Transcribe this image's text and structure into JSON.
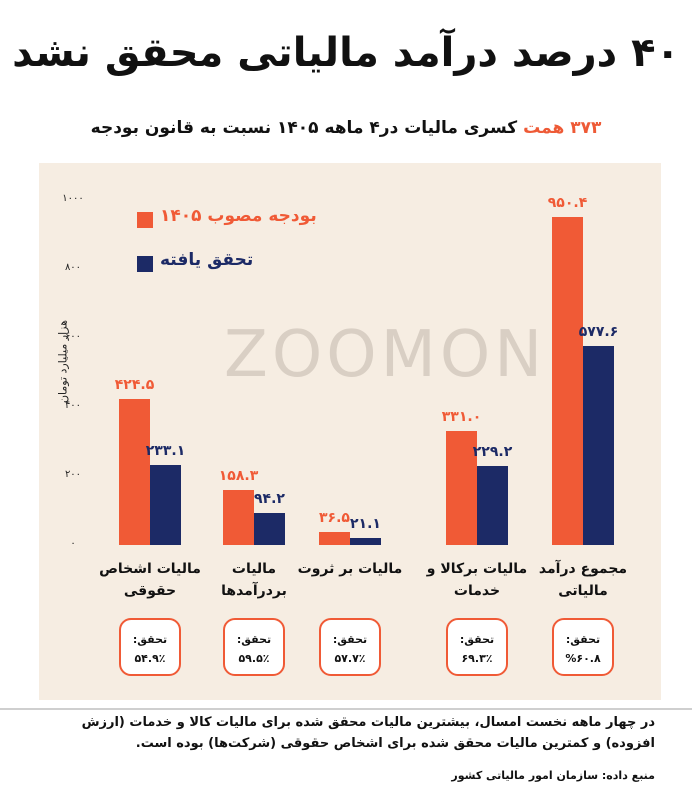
{
  "header": {
    "title": "۴۰ درصد درآمد مالیاتی محقق نشد",
    "subtitle_highlight": "۳۷۳ همت",
    "subtitle_rest": " کسری مالیات در۴ ماهه ۱۴۰۵ نسبت به قانون بودجه"
  },
  "watermark": "ZOOMON",
  "chart_data": {
    "type": "bar",
    "ylabel": "هزار میلیارد تومان",
    "ylim": [
      0,
      1000
    ],
    "yticks": [
      0,
      200,
      400,
      600,
      800,
      1000
    ],
    "ytick_labels": [
      "۰",
      "۲۰۰",
      "۴۰۰",
      "۶۰۰",
      "۸۰۰",
      "۱۰۰۰"
    ],
    "categories": [
      "مالیات اشخاص حقوقی",
      "مالیات بردرآمدها",
      "مالیات بر ثروت",
      "مالیات برکالا و خدمات",
      "مجموع درآمد مالیاتی"
    ],
    "series": [
      {
        "name": "بودجه مصوب ۱۴۰۵",
        "color": "#f05a36",
        "values": [
          424.5,
          158.3,
          36.5,
          331.0,
          950.4
        ],
        "labels": [
          "۴۲۴.۵",
          "۱۵۸.۳",
          "۳۶.۵",
          "۳۳۱.۰",
          "۹۵۰.۴"
        ]
      },
      {
        "name": "تحقق یافته",
        "color": "#1c2a66",
        "values": [
          233.1,
          94.2,
          21.1,
          229.2,
          577.6
        ],
        "labels": [
          "۲۳۳.۱",
          "۹۴.۲",
          "۲۱.۱",
          "۲۲۹.۲",
          "۵۷۷.۶"
        ]
      }
    ],
    "realization_label": "تحقق:",
    "realization": [
      "۵۴.۹٪",
      "۵۹.۵٪",
      "۵۷.۷٪",
      "۶۹.۳٪",
      "%۶۰.۸"
    ]
  },
  "footer": {
    "note": "در چهار ماهه نخست امسال، بیشترین مالیات محقق شده برای مالیات کالا و خدمات (ارزش افزوده) و کمترین مالیات محقق شده برای اشخاص حقوقی (شرکت‌ها) بوده است.",
    "source": "منبع داده: سازمان امور مالیاتی کشور"
  }
}
